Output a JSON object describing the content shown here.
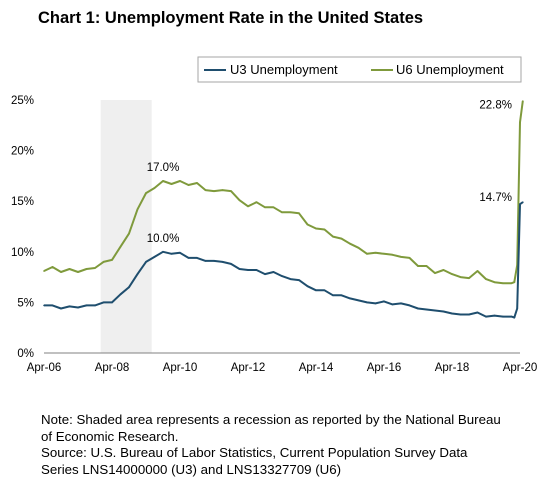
{
  "chart_data": {
    "type": "line",
    "title": "Chart 1: Unemployment Rate in the United States",
    "xlabel": "",
    "ylabel": "",
    "x_ticks": [
      "Apr-06",
      "Apr-08",
      "Apr-10",
      "Apr-12",
      "Apr-14",
      "Apr-16",
      "Apr-18",
      "Apr-20"
    ],
    "y_ticks": [
      "0%",
      "5%",
      "10%",
      "15%",
      "20%",
      "25%"
    ],
    "ylim": [
      0,
      25
    ],
    "xlim": [
      "2006-04",
      "2020-04"
    ],
    "grid": false,
    "legend": "top-right",
    "recession_shading": {
      "start": "2007-12",
      "end": "2009-06"
    },
    "series": [
      {
        "name": "U3 Unemployment",
        "color": "#1f4e6e",
        "points": [
          [
            "2006-04",
            4.7
          ],
          [
            "2006-07",
            4.7
          ],
          [
            "2006-10",
            4.4
          ],
          [
            "2007-01",
            4.6
          ],
          [
            "2007-04",
            4.5
          ],
          [
            "2007-07",
            4.7
          ],
          [
            "2007-10",
            4.7
          ],
          [
            "2008-01",
            5.0
          ],
          [
            "2008-04",
            5.0
          ],
          [
            "2008-07",
            5.8
          ],
          [
            "2008-10",
            6.5
          ],
          [
            "2009-01",
            7.8
          ],
          [
            "2009-04",
            9.0
          ],
          [
            "2009-07",
            9.5
          ],
          [
            "2009-10",
            10.0
          ],
          [
            "2010-01",
            9.8
          ],
          [
            "2010-04",
            9.9
          ],
          [
            "2010-07",
            9.4
          ],
          [
            "2010-10",
            9.4
          ],
          [
            "2011-01",
            9.1
          ],
          [
            "2011-04",
            9.1
          ],
          [
            "2011-07",
            9.0
          ],
          [
            "2011-10",
            8.8
          ],
          [
            "2012-01",
            8.3
          ],
          [
            "2012-04",
            8.2
          ],
          [
            "2012-07",
            8.2
          ],
          [
            "2012-10",
            7.8
          ],
          [
            "2013-01",
            8.0
          ],
          [
            "2013-04",
            7.6
          ],
          [
            "2013-07",
            7.3
          ],
          [
            "2013-10",
            7.2
          ],
          [
            "2014-01",
            6.6
          ],
          [
            "2014-04",
            6.2
          ],
          [
            "2014-07",
            6.2
          ],
          [
            "2014-10",
            5.7
          ],
          [
            "2015-01",
            5.7
          ],
          [
            "2015-04",
            5.4
          ],
          [
            "2015-07",
            5.2
          ],
          [
            "2015-10",
            5.0
          ],
          [
            "2016-01",
            4.9
          ],
          [
            "2016-04",
            5.1
          ],
          [
            "2016-07",
            4.8
          ],
          [
            "2016-10",
            4.9
          ],
          [
            "2017-01",
            4.7
          ],
          [
            "2017-04",
            4.4
          ],
          [
            "2017-07",
            4.3
          ],
          [
            "2017-10",
            4.2
          ],
          [
            "2018-01",
            4.1
          ],
          [
            "2018-04",
            3.9
          ],
          [
            "2018-07",
            3.8
          ],
          [
            "2018-10",
            3.8
          ],
          [
            "2019-01",
            4.0
          ],
          [
            "2019-04",
            3.6
          ],
          [
            "2019-07",
            3.7
          ],
          [
            "2019-10",
            3.6
          ],
          [
            "2020-01",
            3.6
          ],
          [
            "2020-02",
            3.5
          ],
          [
            "2020-03",
            4.4
          ],
          [
            "2020-04",
            14.7
          ],
          [
            "2020-05",
            14.9
          ]
        ]
      },
      {
        "name": "U6 Unemployment",
        "color": "#7f9a3c",
        "points": [
          [
            "2006-04",
            8.1
          ],
          [
            "2006-07",
            8.5
          ],
          [
            "2006-10",
            8.0
          ],
          [
            "2007-01",
            8.3
          ],
          [
            "2007-04",
            8.0
          ],
          [
            "2007-07",
            8.3
          ],
          [
            "2007-10",
            8.4
          ],
          [
            "2008-01",
            9.0
          ],
          [
            "2008-04",
            9.2
          ],
          [
            "2008-07",
            10.5
          ],
          [
            "2008-10",
            11.8
          ],
          [
            "2009-01",
            14.2
          ],
          [
            "2009-04",
            15.8
          ],
          [
            "2009-07",
            16.3
          ],
          [
            "2009-10",
            17.0
          ],
          [
            "2010-01",
            16.7
          ],
          [
            "2010-04",
            17.0
          ],
          [
            "2010-07",
            16.6
          ],
          [
            "2010-10",
            16.8
          ],
          [
            "2011-01",
            16.1
          ],
          [
            "2011-04",
            16.0
          ],
          [
            "2011-07",
            16.1
          ],
          [
            "2011-10",
            16.0
          ],
          [
            "2012-01",
            15.1
          ],
          [
            "2012-04",
            14.5
          ],
          [
            "2012-07",
            14.9
          ],
          [
            "2012-10",
            14.4
          ],
          [
            "2013-01",
            14.4
          ],
          [
            "2013-04",
            13.9
          ],
          [
            "2013-07",
            13.9
          ],
          [
            "2013-10",
            13.8
          ],
          [
            "2014-01",
            12.7
          ],
          [
            "2014-04",
            12.3
          ],
          [
            "2014-07",
            12.2
          ],
          [
            "2014-10",
            11.5
          ],
          [
            "2015-01",
            11.3
          ],
          [
            "2015-04",
            10.8
          ],
          [
            "2015-07",
            10.4
          ],
          [
            "2015-10",
            9.8
          ],
          [
            "2016-01",
            9.9
          ],
          [
            "2016-04",
            9.8
          ],
          [
            "2016-07",
            9.7
          ],
          [
            "2016-10",
            9.5
          ],
          [
            "2017-01",
            9.4
          ],
          [
            "2017-04",
            8.6
          ],
          [
            "2017-07",
            8.6
          ],
          [
            "2017-10",
            7.9
          ],
          [
            "2018-01",
            8.2
          ],
          [
            "2018-04",
            7.8
          ],
          [
            "2018-07",
            7.5
          ],
          [
            "2018-10",
            7.4
          ],
          [
            "2019-01",
            8.1
          ],
          [
            "2019-04",
            7.3
          ],
          [
            "2019-07",
            7.0
          ],
          [
            "2019-10",
            6.9
          ],
          [
            "2020-01",
            6.9
          ],
          [
            "2020-02",
            7.0
          ],
          [
            "2020-03",
            8.7
          ],
          [
            "2020-04",
            22.8
          ],
          [
            "2020-05",
            24.9
          ]
        ]
      }
    ],
    "annotations": [
      {
        "text": "17.0%",
        "series": "U6 Unemployment",
        "x": "2009-10",
        "y": 17.0
      },
      {
        "text": "10.0%",
        "series": "U3 Unemployment",
        "x": "2009-10",
        "y": 10.0
      },
      {
        "text": "22.8%",
        "series": "U6 Unemployment",
        "x": "2020-04",
        "y": 22.8
      },
      {
        "text": "14.7%",
        "series": "U3 Unemployment",
        "x": "2020-04",
        "y": 14.7
      }
    ]
  },
  "note": {
    "lines": [
      "Note: Shaded area represents a recession as reported by the National Bureau",
      "of Economic Research.",
      "Source: U.S. Bureau of Labor Statistics, Current Population Survey Data",
      "Series LNS14000000 (U3) and LNS13327709 (U6)"
    ]
  }
}
